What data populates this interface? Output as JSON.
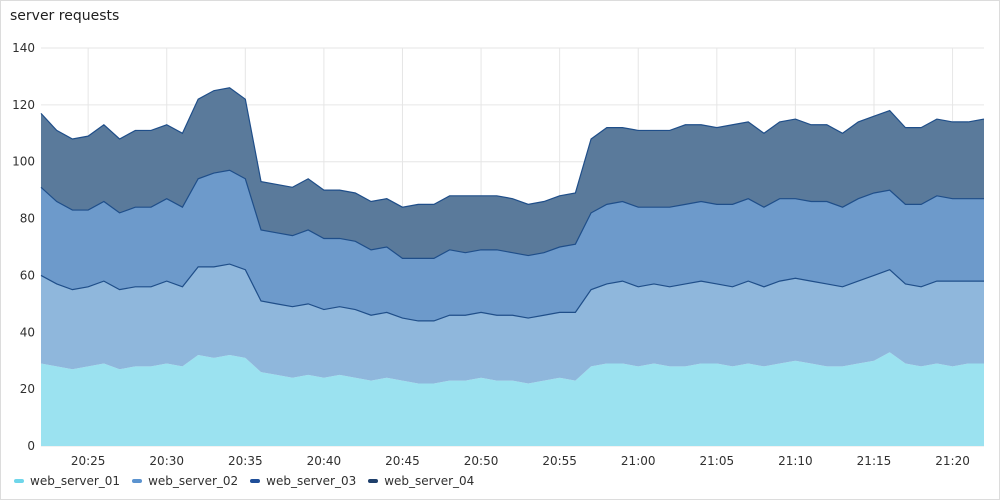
{
  "panel": {
    "title": "server requests"
  },
  "chart_data": {
    "type": "area",
    "stacked": true,
    "title": "server requests",
    "xlabel": "",
    "ylabel": "",
    "ylim": [
      0,
      140
    ],
    "yticks": [
      0,
      20,
      40,
      60,
      80,
      100,
      120,
      140
    ],
    "xticks": [
      "20:25",
      "20:30",
      "20:35",
      "20:40",
      "20:45",
      "20:50",
      "20:55",
      "21:00",
      "21:05",
      "21:10",
      "21:15",
      "21:20"
    ],
    "grid": true,
    "legend": "bottom-left",
    "x": [
      "20:22",
      "20:23",
      "20:24",
      "20:25",
      "20:26",
      "20:27",
      "20:28",
      "20:29",
      "20:30",
      "20:31",
      "20:32",
      "20:33",
      "20:34",
      "20:35",
      "20:36",
      "20:37",
      "20:38",
      "20:39",
      "20:40",
      "20:41",
      "20:42",
      "20:43",
      "20:44",
      "20:45",
      "20:46",
      "20:47",
      "20:48",
      "20:49",
      "20:50",
      "20:51",
      "20:52",
      "20:53",
      "20:54",
      "20:55",
      "20:56",
      "20:57",
      "20:58",
      "20:59",
      "21:00",
      "21:01",
      "21:02",
      "21:03",
      "21:04",
      "21:05",
      "21:06",
      "21:07",
      "21:08",
      "21:09",
      "21:10",
      "21:11",
      "21:12",
      "21:13",
      "21:14",
      "21:15",
      "21:16",
      "21:17",
      "21:18",
      "21:19",
      "21:20",
      "21:21",
      "21:22"
    ],
    "series": [
      {
        "name": "web_server_01",
        "color": "#9be2f0",
        "values": [
          29,
          28,
          27,
          28,
          29,
          27,
          28,
          28,
          29,
          28,
          32,
          31,
          32,
          31,
          26,
          25,
          24,
          25,
          24,
          25,
          24,
          23,
          24,
          23,
          22,
          22,
          23,
          23,
          24,
          23,
          23,
          22,
          23,
          24,
          23,
          28,
          29,
          29,
          28,
          29,
          28,
          28,
          29,
          29,
          28,
          29,
          28,
          29,
          30,
          29,
          28,
          28,
          29,
          30,
          33,
          29,
          28,
          29,
          28,
          29,
          29
        ]
      },
      {
        "name": "web_server_02",
        "color": "#8fb7dc",
        "values": [
          31,
          29,
          28,
          28,
          29,
          28,
          28,
          28,
          29,
          28,
          31,
          32,
          32,
          31,
          25,
          25,
          25,
          25,
          24,
          24,
          24,
          23,
          23,
          22,
          22,
          22,
          23,
          23,
          23,
          23,
          23,
          23,
          23,
          23,
          24,
          27,
          28,
          29,
          28,
          28,
          28,
          29,
          29,
          28,
          28,
          29,
          28,
          29,
          29,
          29,
          29,
          28,
          29,
          30,
          29,
          28,
          28,
          29,
          30,
          29,
          29
        ]
      },
      {
        "name": "web_server_03",
        "color": "#6d9acb",
        "values": [
          31,
          29,
          28,
          27,
          28,
          27,
          28,
          28,
          29,
          28,
          31,
          33,
          33,
          32,
          25,
          25,
          25,
          26,
          25,
          24,
          24,
          23,
          23,
          21,
          22,
          22,
          23,
          22,
          22,
          23,
          22,
          22,
          22,
          23,
          24,
          27,
          28,
          28,
          28,
          27,
          28,
          28,
          28,
          28,
          29,
          29,
          28,
          29,
          28,
          28,
          29,
          28,
          29,
          29,
          28,
          28,
          29,
          30,
          29,
          29,
          29
        ]
      },
      {
        "name": "web_server_04",
        "color": "#5a7a9b",
        "values": [
          26,
          25,
          25,
          26,
          27,
          26,
          27,
          27,
          26,
          26,
          28,
          29,
          29,
          28,
          17,
          17,
          17,
          18,
          17,
          17,
          17,
          17,
          17,
          18,
          19,
          19,
          19,
          20,
          19,
          19,
          19,
          18,
          18,
          18,
          18,
          26,
          27,
          26,
          27,
          27,
          27,
          28,
          27,
          27,
          28,
          27,
          26,
          27,
          28,
          27,
          27,
          26,
          27,
          27,
          28,
          27,
          27,
          27,
          27,
          27,
          28
        ]
      }
    ]
  },
  "legend_items": [
    {
      "label": "web_server_01",
      "color": "#6fd6ea"
    },
    {
      "label": "web_server_02",
      "color": "#5b93cf"
    },
    {
      "label": "web_server_03",
      "color": "#1f4e99"
    },
    {
      "label": "web_server_04",
      "color": "#1e3f6b"
    }
  ],
  "style": {
    "line_color": "#1f4e89",
    "grid_color": "#e6e6e6",
    "tick_color": "#303030"
  }
}
